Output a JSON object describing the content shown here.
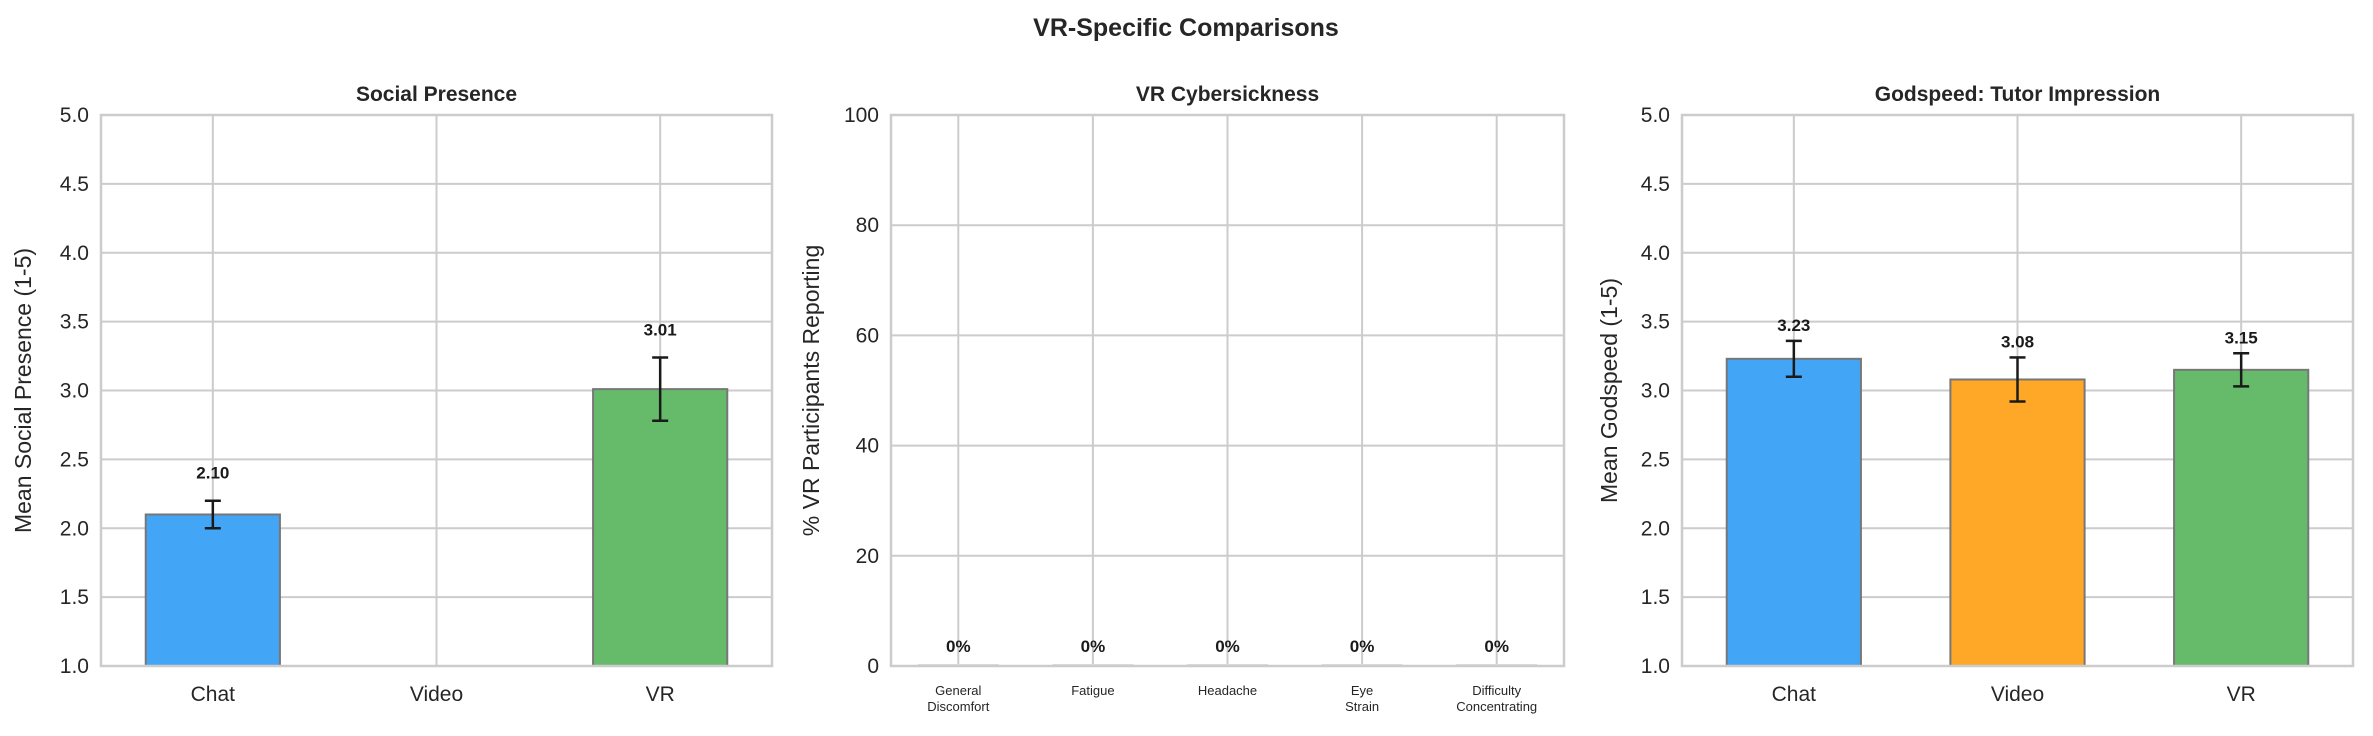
{
  "suptitle": "VR-Specific Comparisons",
  "chart_data": [
    {
      "type": "bar",
      "title": "Social Presence",
      "xlabel": "",
      "ylabel": "Mean Social Presence (1-5)",
      "ylim": [
        1.0,
        5.0
      ],
      "yticks": [
        "1.0",
        "1.5",
        "2.0",
        "2.5",
        "3.0",
        "3.5",
        "4.0",
        "4.5",
        "5.0"
      ],
      "categories": [
        "Chat",
        "Video",
        "VR"
      ],
      "values": [
        2.1,
        null,
        3.01
      ],
      "errors": [
        0.1,
        null,
        0.23
      ],
      "data_labels": [
        "2.10",
        "",
        "3.01"
      ],
      "colors": [
        "#42A5F5",
        "#FFA726",
        "#66BB6A"
      ],
      "grid": true
    },
    {
      "type": "bar",
      "title": "VR Cybersickness",
      "xlabel": "",
      "ylabel": "% VR Participants Reporting",
      "ylim": [
        0,
        100
      ],
      "yticks": [
        "0",
        "20",
        "40",
        "60",
        "80",
        "100"
      ],
      "categories": [
        [
          "General",
          "Discomfort"
        ],
        [
          "Fatigue"
        ],
        [
          "Headache"
        ],
        [
          "Eye",
          "Strain"
        ],
        [
          "Difficulty",
          "Concentrating"
        ]
      ],
      "values": [
        0,
        0,
        0,
        0,
        0
      ],
      "data_labels": [
        "0%",
        "0%",
        "0%",
        "0%",
        "0%"
      ],
      "colors": [
        "#EF5350"
      ],
      "grid": true
    },
    {
      "type": "bar",
      "title": "Godspeed: Tutor Impression",
      "xlabel": "",
      "ylabel": "Mean Godspeed (1-5)",
      "ylim": [
        1.0,
        5.0
      ],
      "yticks": [
        "1.0",
        "1.5",
        "2.0",
        "2.5",
        "3.0",
        "3.5",
        "4.0",
        "4.5",
        "5.0"
      ],
      "categories": [
        "Chat",
        "Video",
        "VR"
      ],
      "values": [
        3.23,
        3.08,
        3.15
      ],
      "errors": [
        0.13,
        0.16,
        0.12
      ],
      "data_labels": [
        "3.23",
        "3.08",
        "3.15"
      ],
      "colors": [
        "#42A5F5",
        "#FFA726",
        "#66BB6A"
      ],
      "grid": true
    }
  ]
}
